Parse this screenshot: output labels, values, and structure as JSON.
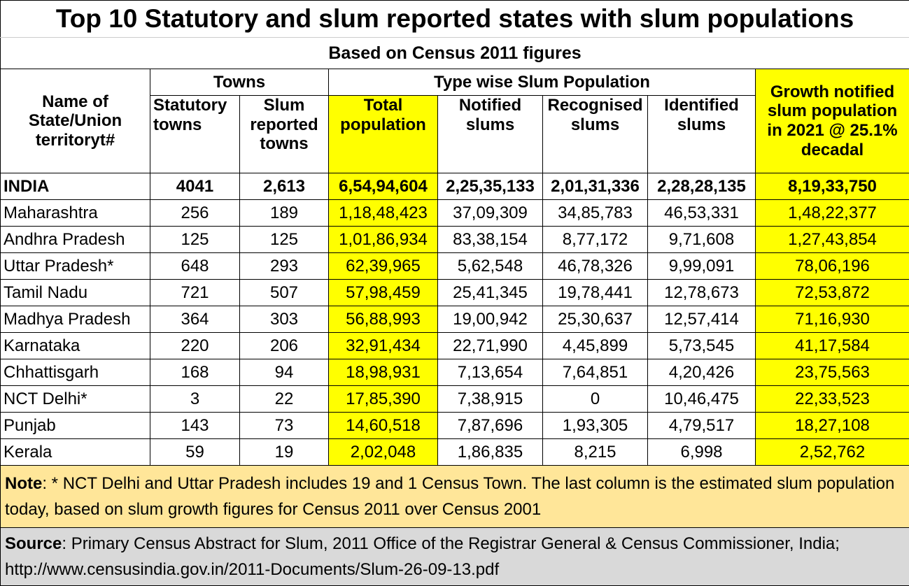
{
  "chart_data": {
    "type": "table",
    "title": "Top 10 Statutory and slum reported states with slum populations",
    "subtitle": "Based on Census 2011 figures",
    "headers": {
      "name": "Name of State/Union territoryt#",
      "towns_group": "Towns",
      "statutory": "Statutory towns",
      "slum_reported": "Slum reported towns",
      "slum_group": "Type wise Slum Population",
      "total": "Total population",
      "notified": "Notified slums",
      "recognised": "Recognised slums",
      "identified": "Identified slums",
      "growth": "Growth notified slum population in 2021 @ 25.1% decadal"
    },
    "rows": [
      {
        "name": "INDIA",
        "statutory": "4041",
        "slum_reported": "2,613",
        "total": "6,54,94,604",
        "notified": "2,25,35,133",
        "recognised": "2,01,31,336",
        "identified": "2,28,28,135",
        "growth": "8,19,33,750"
      },
      {
        "name": "Maharashtra",
        "statutory": "256",
        "slum_reported": "189",
        "total": "1,18,48,423",
        "notified": "37,09,309",
        "recognised": "34,85,783",
        "identified": "46,53,331",
        "growth": "1,48,22,377"
      },
      {
        "name": "Andhra Pradesh",
        "statutory": "125",
        "slum_reported": "125",
        "total": "1,01,86,934",
        "notified": "83,38,154",
        "recognised": "8,77,172",
        "identified": "9,71,608",
        "growth": "1,27,43,854"
      },
      {
        "name": "Uttar Pradesh*",
        "statutory": "648",
        "slum_reported": "293",
        "total": "62,39,965",
        "notified": "5,62,548",
        "recognised": "46,78,326",
        "identified": "9,99,091",
        "growth": "78,06,196"
      },
      {
        "name": "Tamil Nadu",
        "statutory": "721",
        "slum_reported": "507",
        "total": "57,98,459",
        "notified": "25,41,345",
        "recognised": "19,78,441",
        "identified": "12,78,673",
        "growth": "72,53,872"
      },
      {
        "name": "Madhya Pradesh",
        "statutory": "364",
        "slum_reported": "303",
        "total": "56,88,993",
        "notified": "19,00,942",
        "recognised": "25,30,637",
        "identified": "12,57,414",
        "growth": "71,16,930"
      },
      {
        "name": "Karnataka",
        "statutory": "220",
        "slum_reported": "206",
        "total": "32,91,434",
        "notified": "22,71,990",
        "recognised": "4,45,899",
        "identified": "5,73,545",
        "growth": "41,17,584"
      },
      {
        "name": "Chhattisgarh",
        "statutory": "168",
        "slum_reported": "94",
        "total": "18,98,931",
        "notified": "7,13,654",
        "recognised": "7,64,851",
        "identified": "4,20,426",
        "growth": "23,75,563"
      },
      {
        "name": "NCT Delhi*",
        "statutory": "3",
        "slum_reported": "22",
        "total": "17,85,390",
        "notified": "7,38,915",
        "recognised": "0",
        "identified": "10,46,475",
        "growth": "22,33,523"
      },
      {
        "name": "Punjab",
        "statutory": "143",
        "slum_reported": "73",
        "total": "14,60,518",
        "notified": "7,87,696",
        "recognised": "1,93,305",
        "identified": "4,79,517",
        "growth": "18,27,108"
      },
      {
        "name": "Kerala",
        "statutory": "59",
        "slum_reported": "19",
        "total": "2,02,048",
        "notified": "1,86,835",
        "recognised": "8,215",
        "identified": "6,998",
        "growth": "2,52,762"
      }
    ],
    "note_label": "Note",
    "note_text": ": * NCT Delhi and Uttar Pradesh includes 19 and 1 Census Town. The last column is the estimated slum population today, based on slum growth figures for Census 2011 over Census 2001",
    "source_label": "Source",
    "source_text": ": Primary Census Abstract for Slum, 2011 Office of the Registrar General & Census Commissioner, India; http://www.censusindia.gov.in/2011-Documents/Slum-26-09-13.pdf"
  },
  "colors": {
    "highlight": "#ffff00",
    "note_bg": "#ffe699",
    "source_bg": "#d9d9d9"
  }
}
